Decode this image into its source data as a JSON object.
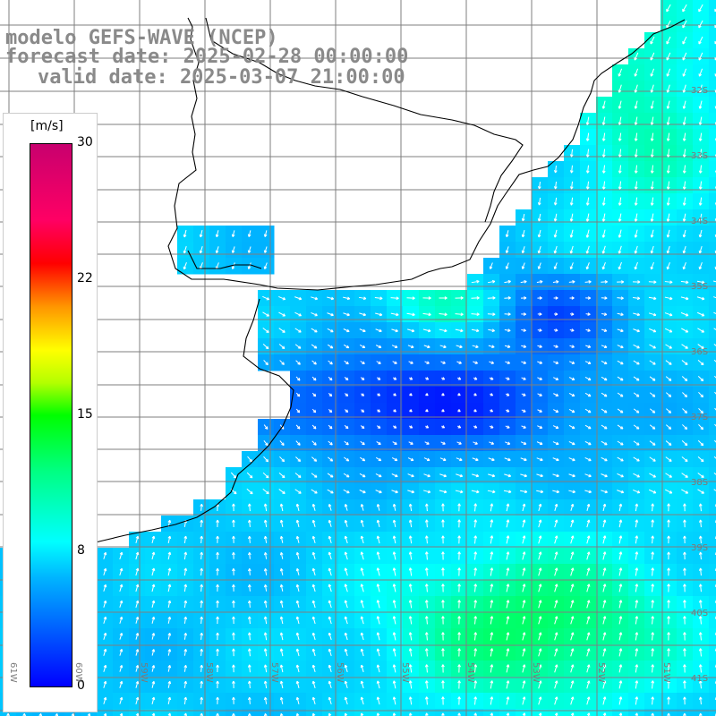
{
  "title": {
    "line1": "modelo GEFS-WAVE (NCEP)",
    "line2": "forecast date: 2025-02-28 00:00:00",
    "line3": "valid date: 2025-03-07 21:00:00"
  },
  "colorbar": {
    "unit": "[m/s]",
    "ticks": [
      "30",
      "22",
      "15",
      "8",
      "0"
    ],
    "min": 0,
    "max": 30,
    "colors": [
      "#0000ff",
      "#00b4ff",
      "#00ffff",
      "#00ff7f",
      "#00ff00",
      "#b4ff00",
      "#ffff00",
      "#ff9600",
      "#ff0000",
      "#ff0064",
      "#c8006e"
    ]
  },
  "axes": {
    "lat_labels": [
      "32S",
      "33S",
      "34S",
      "35S",
      "36S",
      "37S",
      "38S",
      "39S",
      "40S",
      "41S"
    ],
    "lon_labels": [
      "61W",
      "60W",
      "59W",
      "58W",
      "57W",
      "56W",
      "55W",
      "54W",
      "53W",
      "52W",
      "51W"
    ]
  },
  "style": {
    "grid_color": "#7f7f7f",
    "coast_color": "#000000",
    "arrow_color": "#ffffff",
    "title_color": "#8a8a8a"
  }
}
